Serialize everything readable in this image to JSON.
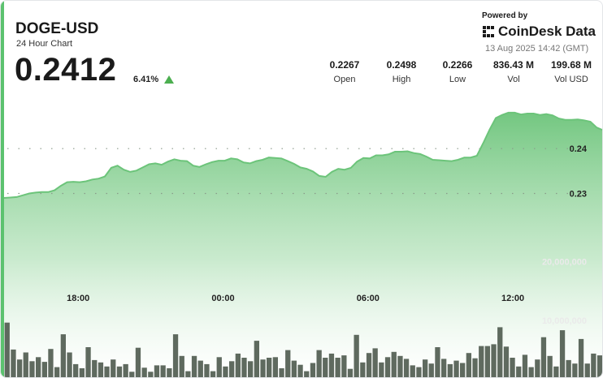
{
  "header": {
    "symbol": "DOGE-USD",
    "subtitle": "24 Hour Chart",
    "price": "0.2412",
    "change_pct": "6.41%",
    "change_direction": "up-triangle-icon"
  },
  "branding": {
    "powered_by": "Powered by",
    "name": "CoinDesk Data",
    "logo_icon": "coindesk-logo-icon",
    "timestamp": "13 Aug 2025 14:42 (GMT)"
  },
  "stats": [
    {
      "value": "0.2267",
      "label": "Open"
    },
    {
      "value": "0.2498",
      "label": "High"
    },
    {
      "value": "0.2266",
      "label": "Low"
    },
    {
      "value": "836.43 M",
      "label": "Vol"
    },
    {
      "value": "199.68 M",
      "label": "Vol USD"
    }
  ],
  "colors": {
    "accent": "#5cc26f",
    "line": "#6cc47a",
    "area_top": "#6cc47a",
    "volume_bar": "#4e5a4e",
    "up": "#4caf50"
  },
  "chart_data": {
    "type": "area",
    "x_tick_labels": [
      "18:00",
      "00:00",
      "06:00",
      "12:00"
    ],
    "price_tick_labels": [
      "0.24",
      "0.23"
    ],
    "price_ticks": [
      0.24,
      0.23
    ],
    "volume_tick_labels": [
      "20,000,000",
      "10,000,000"
    ],
    "volume_ticks": [
      20000000,
      10000000
    ],
    "price_range": [
      0.214,
      0.2525
    ],
    "volume_range": [
      0,
      27000000
    ],
    "price": [
      0.229,
      0.2291,
      0.2292,
      0.2296,
      0.23,
      0.2302,
      0.2303,
      0.2303,
      0.2307,
      0.2317,
      0.2325,
      0.2326,
      0.2325,
      0.2327,
      0.2331,
      0.2333,
      0.2338,
      0.2357,
      0.2362,
      0.2353,
      0.2348,
      0.2351,
      0.2358,
      0.2365,
      0.2367,
      0.2364,
      0.2371,
      0.2376,
      0.2373,
      0.2372,
      0.2362,
      0.2359,
      0.2365,
      0.237,
      0.2373,
      0.2373,
      0.2378,
      0.2376,
      0.2369,
      0.2367,
      0.2372,
      0.2375,
      0.238,
      0.2379,
      0.2378,
      0.2372,
      0.2366,
      0.2358,
      0.2355,
      0.2349,
      0.2339,
      0.2337,
      0.2348,
      0.2355,
      0.2353,
      0.2357,
      0.2371,
      0.2379,
      0.2378,
      0.2385,
      0.2385,
      0.2387,
      0.2393,
      0.2393,
      0.2394,
      0.239,
      0.2388,
      0.2382,
      0.2375,
      0.2374,
      0.2373,
      0.2372,
      0.2375,
      0.238,
      0.238,
      0.2384,
      0.2412,
      0.2442,
      0.2468,
      0.2475,
      0.248,
      0.248,
      0.2476,
      0.2478,
      0.2478,
      0.2475,
      0.2477,
      0.2474,
      0.2467,
      0.2464,
      0.2464,
      0.2465,
      0.2463,
      0.246,
      0.2447,
      0.2441
    ],
    "volume": [
      9600000,
      5000000,
      3300000,
      4500000,
      3000000,
      3700000,
      2900000,
      5100000,
      2000000,
      7600000,
      4500000,
      2500000,
      1800000,
      5400000,
      3200000,
      2800000,
      2100000,
      3300000,
      2100000,
      2500000,
      1200000,
      5300000,
      1900000,
      1200000,
      2300000,
      2300000,
      1800000,
      7600000,
      3900000,
      1300000,
      3900000,
      3100000,
      2500000,
      1300000,
      3700000,
      2100000,
      3000000,
      4300000,
      3600000,
      3000000,
      6500000,
      3300000,
      3600000,
      3700000,
      1800000,
      4900000,
      3100000,
      2400000,
      1300000,
      2700000,
      4900000,
      3600000,
      4300000,
      3600000,
      4000000,
      1700000,
      7500000,
      2800000,
      4400000,
      5200000,
      2800000,
      3700000,
      4600000,
      3900000,
      3400000,
      2300000,
      2000000,
      3300000,
      2600000,
      5400000,
      3400000,
      2500000,
      3100000,
      2700000,
      4400000,
      3500000,
      5600000,
      5600000,
      5900000,
      8800000,
      5500000,
      3600000,
      2100000,
      4100000,
      2000000,
      3300000,
      7100000,
      3900000,
      2100000,
      8300000,
      3200000,
      2600000,
      6800000,
      2600000,
      4300000,
      4000000
    ]
  }
}
